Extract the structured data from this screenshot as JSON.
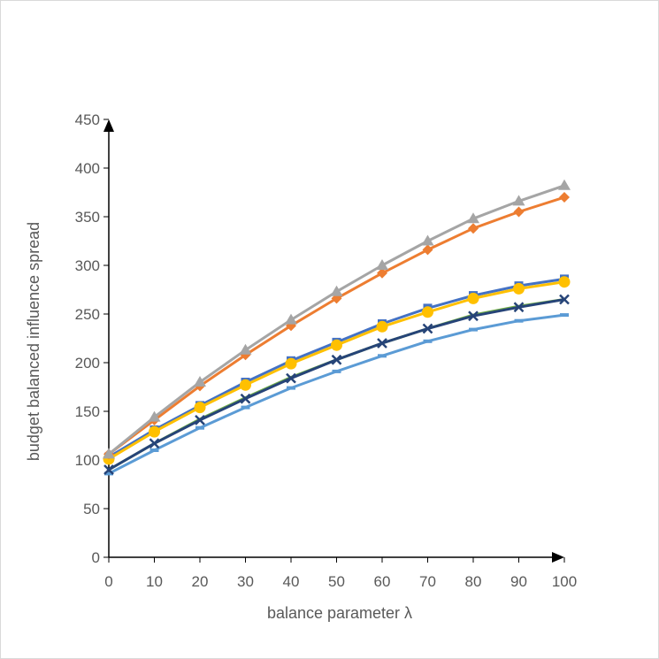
{
  "chart_data": {
    "type": "line",
    "title": "",
    "xlabel": "balance parameter λ",
    "ylabel": "budget balanced influence spread",
    "x": [
      0,
      10,
      20,
      30,
      40,
      50,
      60,
      70,
      80,
      90,
      100
    ],
    "xlim": [
      0,
      100
    ],
    "ylim": [
      0,
      450
    ],
    "yticks": [
      0,
      50,
      100,
      150,
      200,
      250,
      300,
      350,
      400,
      450
    ],
    "grid": false,
    "legend": "none",
    "series": [
      {
        "values": [
          86,
          110,
          133,
          154,
          174,
          191,
          207,
          222,
          234,
          243,
          249
        ],
        "color": "#5b9bd5",
        "marker": "dash"
      },
      {
        "values": [
          90,
          117,
          142,
          164,
          185,
          203,
          220,
          235,
          249,
          258,
          265
        ],
        "color": "#70ad47",
        "marker": "none"
      },
      {
        "values": [
          90,
          117,
          141,
          163,
          184,
          203,
          220,
          235,
          248,
          257,
          265
        ],
        "color": "#264478",
        "marker": "x"
      },
      {
        "values": [
          103,
          131,
          156,
          180,
          202,
          221,
          240,
          256,
          269,
          279,
          286
        ],
        "color": "#4472c4",
        "marker": "square"
      },
      {
        "values": [
          101,
          129,
          154,
          177,
          199,
          218,
          237,
          252,
          266,
          276,
          283
        ],
        "color": "#ffc000",
        "marker": "circle"
      },
      {
        "values": [
          106,
          141,
          176,
          208,
          238,
          266,
          292,
          316,
          338,
          355,
          370
        ],
        "color": "#ed7d31",
        "marker": "diamond"
      },
      {
        "values": [
          106,
          144,
          180,
          213,
          244,
          273,
          300,
          325,
          348,
          366,
          382
        ],
        "color": "#a5a5a5",
        "marker": "triangle"
      }
    ],
    "axis_color": "#000000",
    "text_color": "#595959"
  }
}
